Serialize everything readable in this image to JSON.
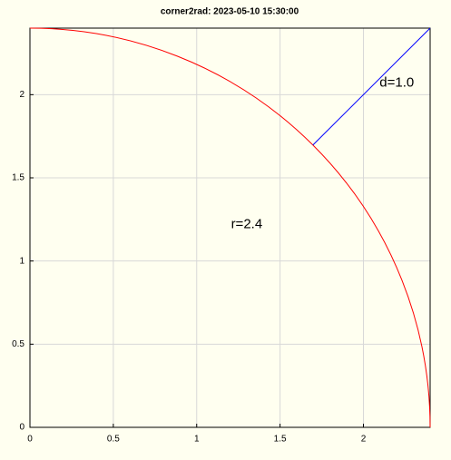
{
  "chart_data": {
    "type": "line",
    "title": "corner2rad: 2023-05-10 15:30:00",
    "xlim": [
      0,
      2.4
    ],
    "ylim": [
      0,
      2.4
    ],
    "xticks": [
      0,
      0.5,
      1,
      1.5,
      2
    ],
    "yticks": [
      0,
      0.5,
      1,
      1.5,
      2
    ],
    "grid": true,
    "circle": {
      "radius": 2.4,
      "color": "#ff0000"
    },
    "series": [
      {
        "x": [
          1.697,
          2.4
        ],
        "values": [
          1.697,
          2.4
        ],
        "color": "#0000ff"
      }
    ],
    "annotations": [
      {
        "text": "r=2.4",
        "x": 1.3,
        "y": 1.22
      },
      {
        "text": "d=1.0",
        "x": 2.2,
        "y": 2.07
      }
    ]
  }
}
